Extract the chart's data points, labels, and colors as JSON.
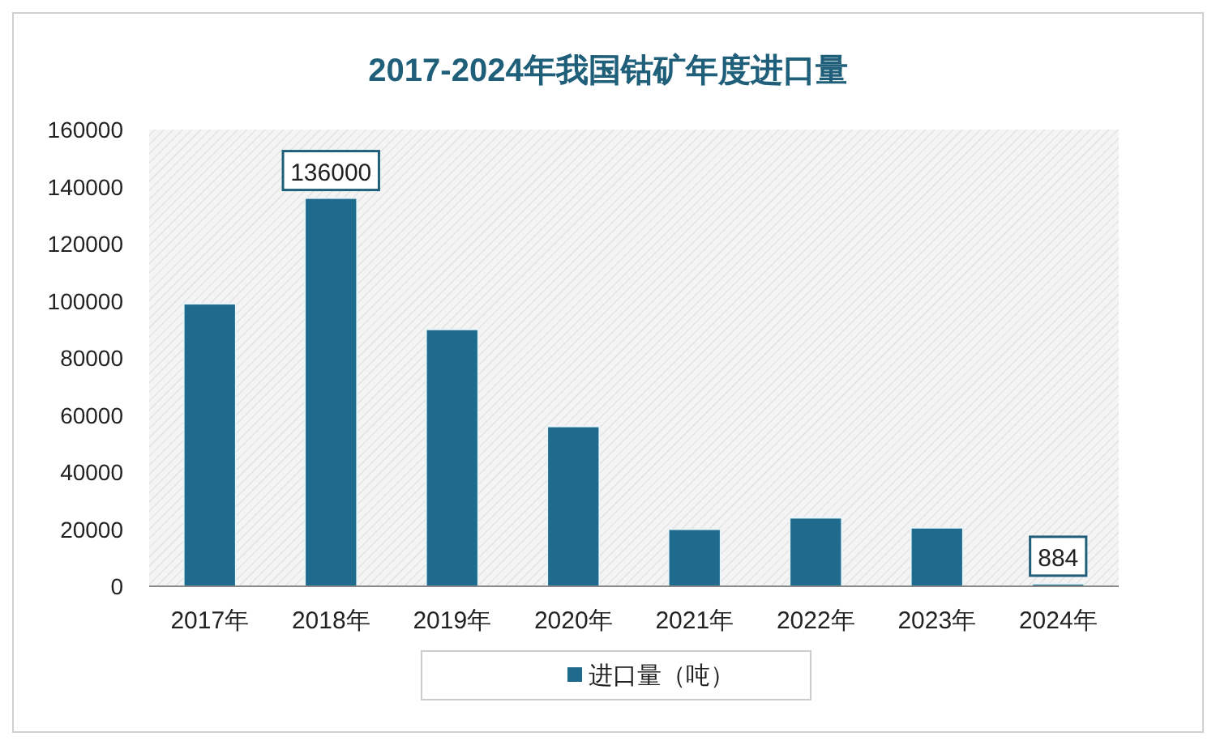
{
  "chart_data": {
    "type": "bar",
    "title": "2017-2024年我国钴矿年度进口量",
    "categories": [
      "2017年",
      "2018年",
      "2019年",
      "2020年",
      "2021年",
      "2022年",
      "2023年",
      "2024年"
    ],
    "series": [
      {
        "name": "进口量（吨）",
        "color": "#1f6b8e",
        "values": [
          99000,
          136000,
          90000,
          56000,
          20000,
          24000,
          20500,
          884
        ],
        "value_labels": [
          null,
          "136000",
          null,
          null,
          null,
          null,
          null,
          "884"
        ]
      }
    ],
    "ylim": [
      0,
      160000
    ],
    "yticks": [
      0,
      20000,
      40000,
      60000,
      80000,
      100000,
      120000,
      140000,
      160000
    ],
    "grid": false,
    "legend": "bottom"
  }
}
